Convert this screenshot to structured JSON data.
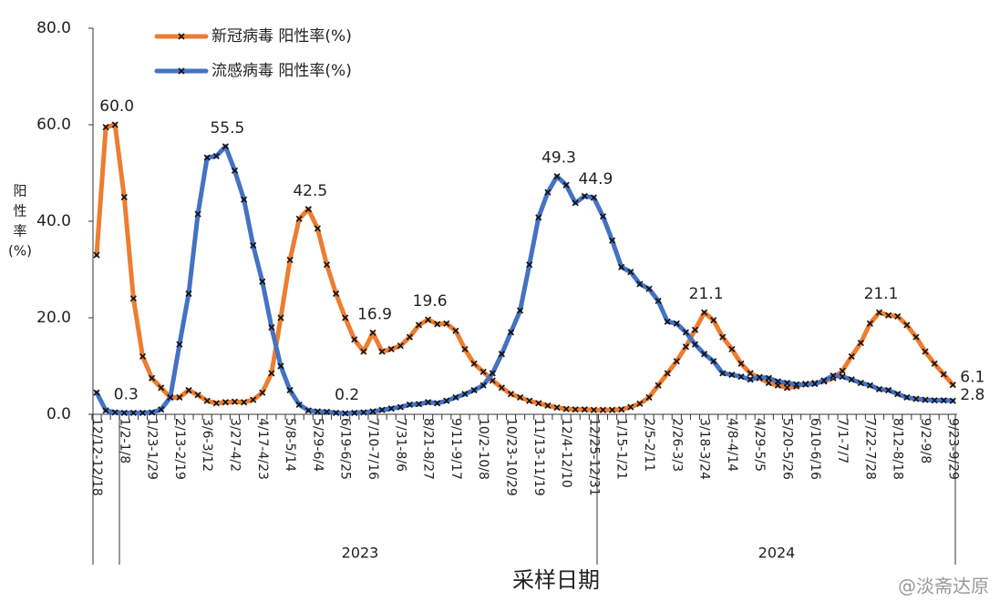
{
  "chart_data": {
    "type": "line",
    "y_axis_label": [
      "阳",
      "性",
      "率",
      "(%)"
    ],
    "x_axis_label": "采样日期",
    "x_groups": [
      "2023",
      "2024"
    ],
    "watermark": "@淡斋达原",
    "categories": [
      "12/12-12/18",
      null,
      null,
      "1/2-1/8",
      null,
      null,
      "1/23-1/29",
      null,
      null,
      "2/13-2/19",
      null,
      null,
      "3/6-3/12",
      null,
      null,
      "3/27-4/2",
      null,
      null,
      "4/17-4/23",
      null,
      null,
      "5/8-5/14",
      null,
      null,
      "5/29-6/4",
      null,
      null,
      "6/19-6/25",
      null,
      null,
      "7/10-7/16",
      null,
      null,
      "7/31-8/6",
      null,
      null,
      "8/21-8/27",
      null,
      null,
      "9/11-9/17",
      null,
      null,
      "10/2-10/8",
      null,
      null,
      "10/23-10/29",
      null,
      null,
      "11/13-11/19",
      null,
      null,
      "12/4-12/10",
      null,
      null,
      "12/25-12/31",
      null,
      null,
      "1/15-1/21",
      null,
      null,
      "2/5-2/11",
      null,
      null,
      "2/26-3/3",
      null,
      null,
      "3/18-3/24",
      null,
      null,
      "4/8-4/14",
      null,
      null,
      "4/29-5/5",
      null,
      null,
      "5/20-5/26",
      null,
      null,
      "6/10-6/16",
      null,
      null,
      "7/1-7/7",
      null,
      null,
      "7/22-7/28",
      null,
      null,
      "8/12-8/18",
      null,
      null,
      "9/2-9/8",
      null,
      null,
      "9/23-9/29"
    ],
    "series": [
      {
        "name": "新冠病毒 阳性率(%)",
        "color": "#ED7D31",
        "values": [
          33,
          59.5,
          60.0,
          45,
          24,
          12,
          7.5,
          5.5,
          3.5,
          3.5,
          5,
          4,
          2.8,
          2.3,
          2.5,
          2.6,
          2.5,
          3,
          4.5,
          8.5,
          20,
          32,
          40.5,
          42.5,
          38.5,
          31,
          25,
          20,
          15.5,
          13,
          16.9,
          13,
          13.5,
          14.2,
          16,
          18.5,
          19.6,
          18.7,
          18.8,
          17.3,
          13.5,
          10.5,
          8.8,
          7,
          5.5,
          4.2,
          3.5,
          2.8,
          2.3,
          1.8,
          1.4,
          1.1,
          1.0,
          1.0,
          0.9,
          0.9,
          0.9,
          1.0,
          1.5,
          2.2,
          3.5,
          6,
          8.5,
          11,
          14,
          17.5,
          21.1,
          19.5,
          16,
          13.5,
          10.5,
          8.5,
          7.5,
          6.5,
          6,
          5.5,
          5.8,
          6.3,
          6.5,
          6.8,
          7.5,
          9,
          12,
          14.8,
          18.8,
          21.1,
          20.5,
          20.3,
          18.5,
          16,
          13,
          10.5,
          8.3,
          6.1
        ],
        "value_labels": [
          null,
          null,
          "60.0",
          null,
          null,
          null,
          null,
          null,
          null,
          null,
          null,
          null,
          null,
          null,
          null,
          null,
          null,
          null,
          null,
          null,
          null,
          null,
          null,
          "42.5",
          null,
          null,
          null,
          null,
          null,
          null,
          "16.9",
          null,
          null,
          null,
          null,
          null,
          "19.6",
          null,
          null,
          null,
          null,
          null,
          null,
          null,
          null,
          null,
          null,
          null,
          null,
          null,
          null,
          null,
          null,
          null,
          null,
          null,
          null,
          null,
          null,
          null,
          null,
          null,
          null,
          null,
          null,
          null,
          "21.1",
          null,
          null,
          null,
          null,
          null,
          null,
          null,
          null,
          null,
          null,
          null,
          null,
          null,
          null,
          null,
          null,
          null,
          null,
          "21.1",
          null,
          null,
          null,
          null,
          null,
          null,
          null,
          "6.1"
        ]
      },
      {
        "name": "流感病毒 阳性率(%)",
        "color": "#4472C4",
        "values": [
          4.5,
          0.8,
          0.4,
          0.3,
          0.3,
          0.3,
          0.4,
          1,
          3.5,
          14.5,
          25,
          41.5,
          53.2,
          53.5,
          55.5,
          50.5,
          44.5,
          35,
          27.5,
          18,
          10,
          5,
          2,
          0.8,
          0.6,
          0.5,
          0.3,
          0.2,
          0.3,
          0.4,
          0.6,
          0.9,
          1.2,
          1.5,
          2,
          2.1,
          2.5,
          2.3,
          2.8,
          3.5,
          4.2,
          5,
          6,
          8.5,
          12.5,
          17,
          21.5,
          31,
          40.8,
          46,
          49.3,
          47.5,
          43.8,
          45.2,
          44.9,
          41,
          36,
          30.5,
          29.5,
          27,
          26,
          23.5,
          19.2,
          18.8,
          17,
          14.5,
          12.5,
          11,
          8.5,
          8.2,
          7.8,
          7.2,
          7.7,
          7.5,
          6.8,
          6.5,
          6.2,
          6.2,
          6.3,
          7,
          8,
          7.8,
          7.2,
          6.5,
          6,
          5.2,
          5,
          4.2,
          3.5,
          3.2,
          3,
          2.9,
          2.9,
          2.8
        ],
        "value_labels": [
          null,
          null,
          null,
          "0.3",
          null,
          null,
          null,
          null,
          null,
          null,
          null,
          null,
          null,
          null,
          "55.5",
          null,
          null,
          null,
          null,
          null,
          null,
          null,
          null,
          null,
          null,
          null,
          null,
          "0.2",
          null,
          null,
          null,
          null,
          null,
          null,
          null,
          null,
          null,
          null,
          null,
          null,
          null,
          null,
          null,
          null,
          null,
          null,
          null,
          null,
          null,
          null,
          "49.3",
          null,
          null,
          null,
          "44.9",
          null,
          null,
          null,
          null,
          null,
          null,
          null,
          null,
          null,
          null,
          null,
          null,
          null,
          null,
          null,
          null,
          null,
          null,
          null,
          null,
          null,
          null,
          null,
          null,
          null,
          null,
          null,
          null,
          null,
          null,
          null,
          null,
          null,
          null,
          null,
          null,
          null,
          null,
          "2.8"
        ]
      }
    ],
    "ylim": [
      0,
      80
    ],
    "yticks": [
      {
        "value": 0,
        "label": "0.0"
      },
      {
        "value": 20,
        "label": "20.0"
      },
      {
        "value": 40,
        "label": "40.0"
      },
      {
        "value": 60,
        "label": "60.0"
      },
      {
        "value": 80,
        "label": "80.0"
      }
    ],
    "legend": "upper left",
    "grid": false
  }
}
